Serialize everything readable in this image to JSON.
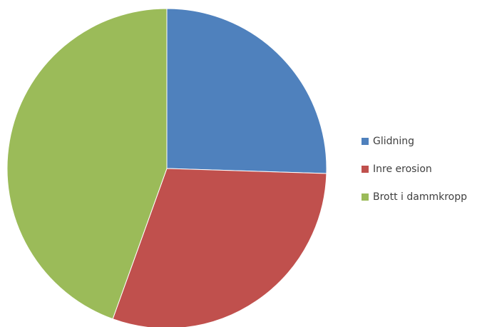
{
  "chart_data": {
    "type": "pie",
    "start_angle_deg": 0,
    "direction": "clockwise",
    "series": [
      {
        "values": [
          25.5,
          30,
          44.5
        ],
        "categories": [
          "Glidning",
          "Inre erosion",
          "Brott i dammkropp"
        ]
      }
    ],
    "colors": [
      "#4F81BD",
      "#C0504D",
      "#9BBB59"
    ],
    "legend": {
      "placement": "right",
      "entries": [
        "Glidning",
        "Inre erosion",
        "Brott i dammkropp"
      ]
    }
  }
}
